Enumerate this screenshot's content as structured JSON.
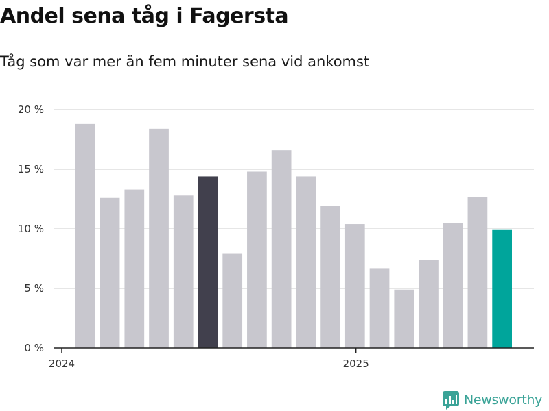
{
  "title": "Andel sena tåg i Fagersta",
  "subtitle": "Tåg som var mer än fem minuter sena vid ankomst",
  "brand": {
    "name": "Newsworthy",
    "color": "#3aa397"
  },
  "colors": {
    "default_bar": "#c8c7ce",
    "highlight_bar": "#41404d",
    "latest_bar": "#00a59b",
    "grid": "#dddddd",
    "axis": "#222222"
  },
  "chart_data": {
    "type": "bar",
    "title": "Andel sena tåg i Fagersta",
    "subtitle": "Tåg som var mer än fem minuter sena vid ankomst",
    "xlabel": "",
    "ylabel": "",
    "ylim": [
      0,
      20
    ],
    "yticks": [
      0,
      5,
      10,
      15,
      20
    ],
    "ytick_labels": [
      "0 %",
      "5 %",
      "10 %",
      "15 %",
      "20 %"
    ],
    "grid": true,
    "categories": [
      "2024-01",
      "2024-02",
      "2024-03",
      "2024-04",
      "2024-05",
      "2024-06",
      "2024-07",
      "2024-08",
      "2024-09",
      "2024-10",
      "2024-11",
      "2024-12",
      "2025-01",
      "2025-02",
      "2025-03",
      "2025-04",
      "2025-05",
      "2025-06"
    ],
    "values": [
      18.8,
      12.6,
      13.3,
      18.4,
      12.8,
      14.4,
      7.9,
      14.8,
      16.6,
      14.4,
      11.9,
      10.4,
      6.7,
      4.9,
      7.4,
      10.5,
      12.7,
      9.9
    ],
    "highlight": {
      "2024-06": "highlight_bar",
      "2025-06": "latest_bar"
    },
    "xticks": [
      {
        "label": "2024",
        "category": "2024-01"
      },
      {
        "label": "2025",
        "category": "2025-01"
      }
    ]
  }
}
